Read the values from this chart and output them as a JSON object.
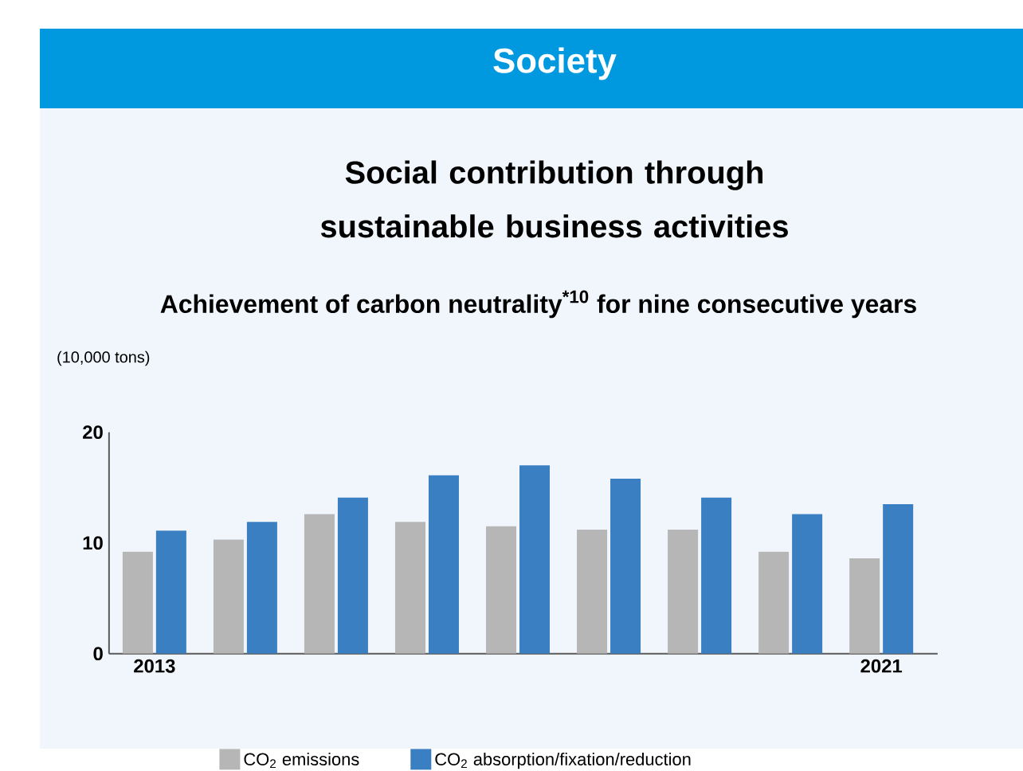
{
  "chart_data": {
    "type": "bar",
    "title": "Society",
    "subtitle": "Social contribution through sustainable business activities",
    "annotations": [
      "Achievement of carbon neutrality$^{*10}$ for nine consecutive years"
    ],
    "ylabel": "(10,000 tons)",
    "categories": [
      "2013",
      null,
      null,
      null,
      null,
      null,
      null,
      null,
      "2021"
    ],
    "series": [
      {
        "name": "CO$_{2}$ emissions",
        "color": "#b5b6b5",
        "values": [
          9.2,
          10.3,
          12.6,
          11.9,
          11.5,
          11.2,
          11.2,
          9.2,
          8.6
        ]
      },
      {
        "name": "CO$_{2}$ absorption/fixation/reduction",
        "color": "#3a7fc2",
        "values": [
          11.1,
          11.9,
          14.1,
          16.1,
          17.0,
          15.8,
          14.1,
          12.6,
          13.5
        ]
      }
    ],
    "ylim": [
      0,
      20
    ],
    "yticks": [
      0,
      10,
      20
    ],
    "legend": "bottom"
  }
}
